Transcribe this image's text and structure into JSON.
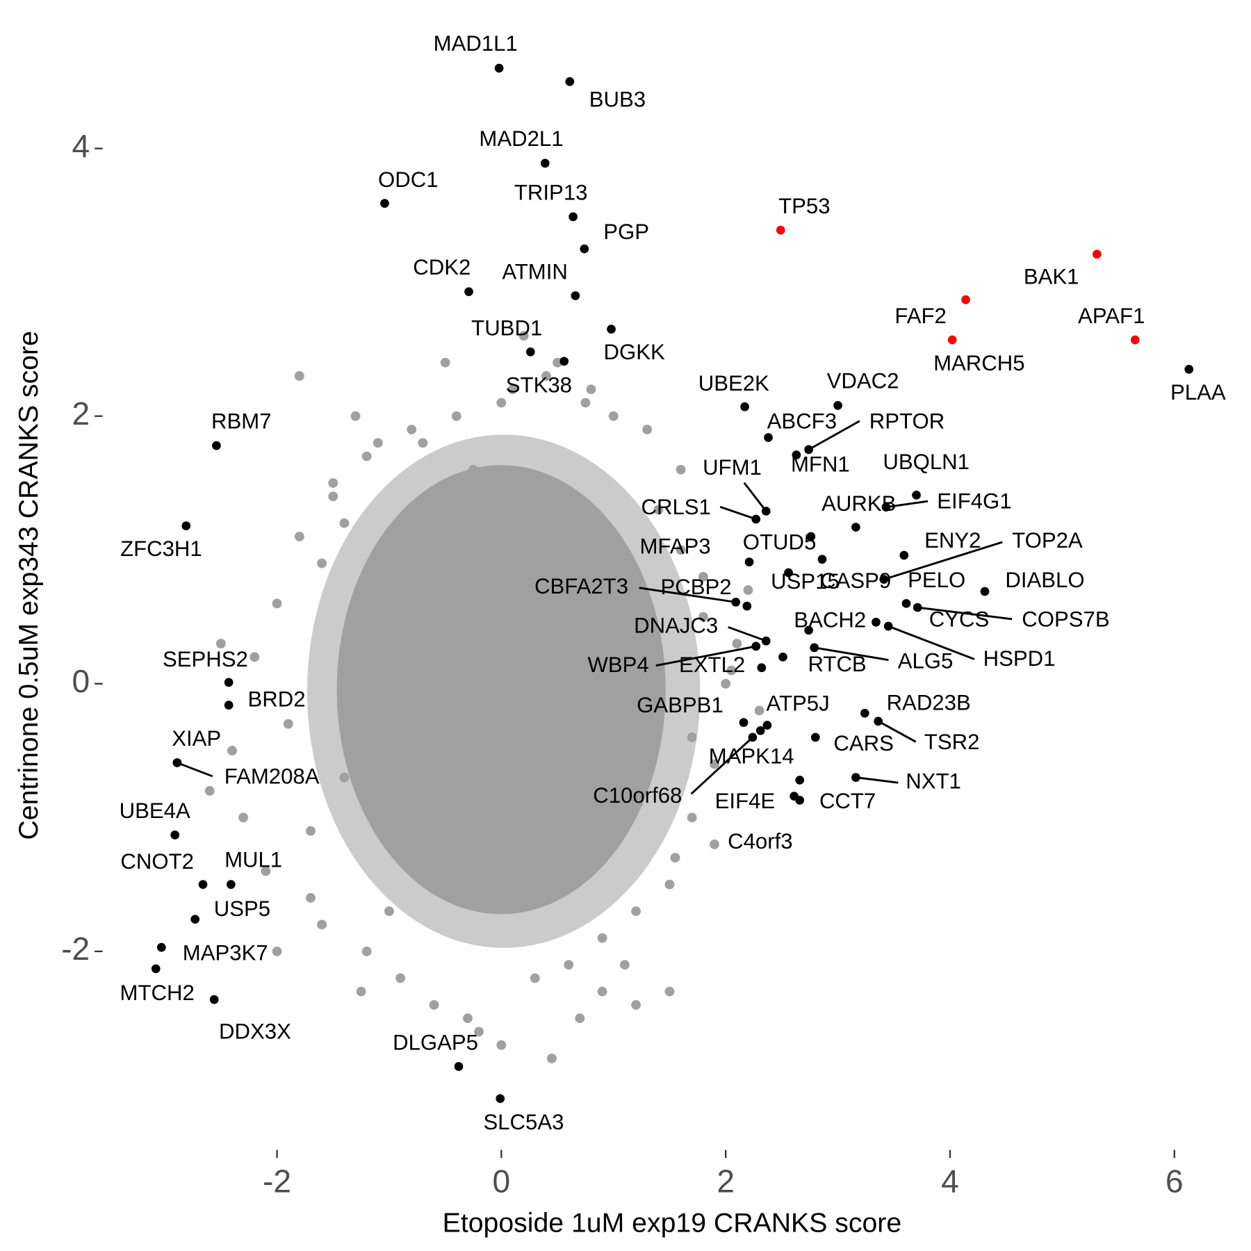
{
  "chart_data": {
    "type": "scatter",
    "x_label": "Etoposide 1uM exp19 CRANKS score",
    "y_label": "Centrinone 0.5uM exp343 CRANKS score",
    "xlim": [
      -3.54,
      6.54
    ],
    "ylim": [
      -3.46,
      4.87
    ],
    "xticks": [
      -2,
      0,
      2,
      4,
      6
    ],
    "yticks": [
      -2,
      0,
      2,
      4
    ],
    "grid": false,
    "series": [
      {
        "color": "#a0a0a0",
        "x": [
          -1.8,
          -1.5,
          -1.3,
          -1.2,
          -1.6,
          -2.0,
          -2.2,
          -1.9,
          -1.4,
          -1.7,
          -2.4,
          -2.5,
          -2.1,
          -1.6,
          -1.2,
          -0.9,
          -0.6,
          -0.3,
          0.0,
          0.3,
          0.6,
          0.9,
          1.2,
          1.5,
          1.7,
          1.9,
          2.0,
          1.8,
          1.6,
          1.4,
          1.3,
          1.6,
          1.8,
          2.1,
          2.3,
          1.9,
          1.5,
          1.2,
          0.8,
          0.4,
          0.0,
          -0.4,
          -0.8,
          -1.1,
          -1.4,
          -1.7,
          -2.0,
          -2.3,
          -1.8,
          -1.5,
          0.2,
          0.5,
          -0.2,
          0.7,
          1.0,
          -0.7,
          1.1,
          -1.0,
          0.1,
          0.9,
          1.7,
          2.2,
          -2.6,
          -0.5,
          0.45,
          -0.25,
          1.55,
          2.05,
          -1.25,
          0.75
        ],
        "y": [
          2.3,
          1.5,
          2.0,
          1.7,
          0.9,
          0.6,
          0.2,
          -0.3,
          -0.7,
          -1.1,
          -0.5,
          0.3,
          -1.4,
          -1.8,
          -2.0,
          -2.2,
          -2.4,
          -2.5,
          -2.7,
          -2.2,
          -2.1,
          -1.9,
          -1.7,
          -1.5,
          -1.0,
          -0.6,
          0.0,
          0.5,
          1.0,
          1.3,
          1.9,
          1.6,
          0.8,
          0.3,
          -0.2,
          -1.2,
          -2.3,
          -2.4,
          2.2,
          2.3,
          2.1,
          2.0,
          1.9,
          1.8,
          1.2,
          -1.6,
          -2.0,
          -1.0,
          1.1,
          1.4,
          2.6,
          2.4,
          -2.6,
          -2.5,
          2.0,
          1.8,
          -2.1,
          -1.7,
          2.2,
          -2.3,
          -0.4,
          0.7,
          -0.8,
          2.4,
          -2.8,
          1.6,
          -1.3,
          0.1,
          -2.3,
          2.1
        ]
      },
      {
        "color": "#000000",
        "labels": [
          "MAD1L1",
          "BUB3",
          "MAD2L1",
          "ODC1",
          "TRIP13",
          "PGP",
          "CDK2",
          "ATMIN",
          "DGKK",
          "TUBD1",
          "STK38",
          "UBE2K",
          "VDAC2",
          "ABCF3",
          "RPTOR",
          "MFN1",
          "UBQLN1",
          "EIF4G1",
          "AURKB",
          "UFM1",
          "CRLS1",
          "OTUD5",
          "MFAP3",
          "USP15",
          "CASP9",
          "TOP2A",
          "ENY2",
          "PELO",
          "DIABLO",
          "CBFA2T3",
          "PCBP2",
          "CYCS",
          "COPS7B",
          "DNAJC3",
          "BACH2",
          "HSPD1",
          "ALG5",
          "RTCB",
          "EXTL2",
          "WBP4",
          "SEPHS2",
          "BRD2",
          "XIAP",
          "FAM208A",
          "UBE4A",
          "CNOT2",
          "MUL1",
          "USP5",
          "MAP3K7",
          "MTCH2",
          "DDX3X",
          "DLGAP5",
          "SLC5A3",
          "RBM7",
          "ZFC3H1",
          "GABPB1",
          "ATP5J",
          "MAPK14",
          "C10orf68",
          "RAD23B",
          "TSR2",
          "CARS",
          "NXT1",
          "CCT7",
          "EIF4E",
          "C4orf3",
          "PLAA"
        ],
        "x": [
          -0.02,
          0.61,
          0.39,
          -1.04,
          0.64,
          0.74,
          -0.29,
          0.66,
          0.98,
          0.26,
          0.56,
          2.17,
          3.0,
          2.38,
          2.74,
          2.63,
          3.7,
          3.43,
          3.16,
          2.36,
          2.27,
          2.76,
          2.21,
          2.56,
          2.86,
          3.41,
          3.59,
          3.61,
          4.31,
          2.09,
          2.19,
          3.34,
          3.71,
          2.36,
          2.74,
          3.45,
          2.79,
          2.51,
          2.32,
          2.27,
          -2.43,
          -2.43,
          -2.89,
          -2.89,
          -2.91,
          -2.66,
          -2.41,
          -2.73,
          -3.03,
          -3.08,
          -2.56,
          -0.38,
          -0.01,
          -2.54,
          -2.81,
          2.16,
          2.37,
          2.31,
          2.24,
          3.24,
          3.36,
          2.8,
          3.16,
          2.66,
          2.61,
          2.66,
          6.13
        ],
        "y": [
          4.6,
          4.5,
          3.89,
          3.59,
          3.49,
          3.25,
          2.93,
          2.9,
          2.65,
          2.48,
          2.41,
          2.07,
          2.08,
          1.84,
          1.75,
          1.71,
          1.41,
          1.32,
          1.17,
          1.29,
          1.23,
          1.1,
          0.91,
          0.83,
          0.93,
          0.78,
          0.96,
          0.6,
          0.69,
          0.61,
          0.58,
          0.46,
          0.57,
          0.32,
          0.4,
          0.43,
          0.27,
          0.2,
          0.12,
          0.28,
          0.01,
          -0.16,
          -0.59,
          -0.59,
          -1.13,
          -1.5,
          -1.5,
          -1.76,
          -1.97,
          -2.13,
          -2.36,
          -2.86,
          -3.1,
          1.78,
          1.18,
          -0.29,
          -0.31,
          -0.35,
          -0.4,
          -0.22,
          -0.28,
          -0.4,
          -0.7,
          -0.87,
          -0.84,
          -0.72,
          2.35
        ]
      },
      {
        "color": "#ff0000",
        "labels": [
          "TP53",
          "BAK1",
          "FAF2",
          "MARCH5",
          "APAF1"
        ],
        "x": [
          2.49,
          5.31,
          4.14,
          4.02,
          5.65
        ],
        "y": [
          3.39,
          3.21,
          2.87,
          2.57,
          2.57
        ]
      }
    ]
  }
}
